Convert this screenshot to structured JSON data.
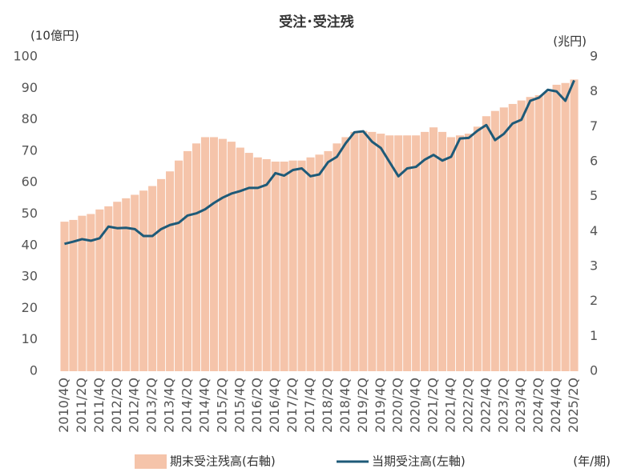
{
  "chart_data": {
    "type": "bar",
    "title": "受注･受注残",
    "y_label": "(10億円)",
    "y2_label": "(兆円)",
    "x_label": "(年/期)",
    "categories": [
      "2010/4Q",
      null,
      "2011/2Q",
      null,
      "2011/4Q",
      null,
      "2012/2Q",
      null,
      "2012/4Q",
      null,
      "2013/2Q",
      null,
      "2013/4Q",
      null,
      "2014/2Q",
      null,
      "2014/4Q",
      null,
      "2015/2Q",
      null,
      "2015/4Q",
      null,
      "2016/2Q",
      null,
      "2016/4Q",
      null,
      "2017/2Q",
      null,
      "2017/4Q",
      null,
      "2018/2Q",
      null,
      "2018/4Q",
      null,
      "2019/2Q",
      null,
      "2019/4Q",
      null,
      "2020/2Q",
      null,
      "2020/4Q",
      null,
      "2021/2Q",
      null,
      "2021/4Q",
      null,
      "2022/2Q",
      null,
      "2022/4Q",
      null,
      "2023/2Q",
      null,
      "2023/4Q",
      null,
      "2024/2Q",
      null,
      "2024/4Q",
      null,
      "2025/2Q"
    ],
    "series": [
      {
        "name": "期末受注残高(右軸)",
        "type": "bar",
        "axis": "y2",
        "color": "#f5c4aa",
        "values": [
          4.28,
          4.33,
          4.45,
          4.5,
          4.63,
          4.72,
          4.85,
          4.95,
          5.05,
          5.17,
          5.3,
          5.5,
          5.72,
          6.03,
          6.3,
          6.52,
          6.7,
          6.7,
          6.65,
          6.57,
          6.4,
          6.25,
          6.12,
          6.07,
          6.0,
          6.0,
          6.03,
          6.03,
          6.12,
          6.2,
          6.3,
          6.52,
          6.7,
          6.85,
          6.88,
          6.85,
          6.8,
          6.75,
          6.75,
          6.75,
          6.75,
          6.85,
          6.98,
          6.85,
          6.7,
          6.75,
          6.8,
          7.0,
          7.3,
          7.45,
          7.55,
          7.65,
          7.75,
          7.85,
          7.9,
          8.0,
          8.2,
          8.25,
          8.35
        ]
      },
      {
        "name": "当期受注高(左軸)",
        "type": "line",
        "axis": "y",
        "color": "#1e5a78",
        "values": [
          40.5,
          41.2,
          42,
          41.5,
          42.3,
          46,
          45.5,
          45.6,
          45.2,
          43,
          43,
          45.2,
          46.5,
          47.2,
          49.5,
          50.2,
          51.5,
          53.5,
          55.2,
          56.5,
          57.3,
          58.3,
          58.3,
          59.3,
          63,
          62.2,
          64,
          64.5,
          62,
          62.6,
          66.5,
          68.2,
          72.5,
          76,
          76.3,
          73,
          71,
          66.5,
          62,
          64.5,
          65,
          67.3,
          68.8,
          67,
          68.2,
          74,
          74.2,
          76.5,
          78.3,
          73.5,
          75.5,
          78.8,
          80,
          86,
          87,
          89.5,
          89,
          86,
          92.5
        ]
      }
    ],
    "ylim": [
      0,
      100
    ],
    "yticks": [
      0,
      10,
      20,
      30,
      40,
      50,
      60,
      70,
      80,
      90,
      100
    ],
    "y2lim": [
      0,
      9
    ],
    "y2ticks": [
      0,
      1,
      2,
      3,
      4,
      5,
      6,
      7,
      8,
      9
    ],
    "legend": "bottom"
  }
}
